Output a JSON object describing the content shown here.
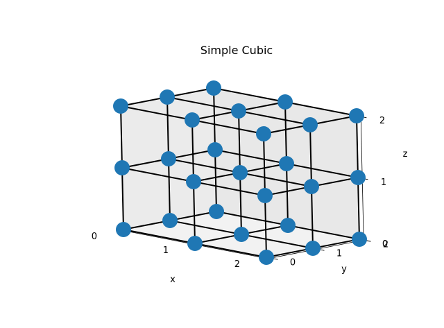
{
  "chart_data": {
    "type": "scatter3d",
    "title": "Simple Cubic",
    "xlabel": "x",
    "ylabel": "y",
    "zlabel": "z",
    "xlim": [
      0,
      2
    ],
    "ylim": [
      0,
      2
    ],
    "zlim": [
      0,
      2
    ],
    "xticks": [
      "0",
      "1",
      "2"
    ],
    "yticks": [
      "0",
      "1",
      "2"
    ],
    "zticks": [
      "0",
      "1",
      "2"
    ],
    "grid": true,
    "lattice_size": 3,
    "marker_color": "#1f77b4",
    "edge_color": "#000000",
    "points": [
      [
        0,
        0,
        0
      ],
      [
        0,
        0,
        1
      ],
      [
        0,
        0,
        2
      ],
      [
        0,
        1,
        0
      ],
      [
        0,
        1,
        1
      ],
      [
        0,
        1,
        2
      ],
      [
        0,
        2,
        0
      ],
      [
        0,
        2,
        1
      ],
      [
        0,
        2,
        2
      ],
      [
        1,
        0,
        0
      ],
      [
        1,
        0,
        1
      ],
      [
        1,
        0,
        2
      ],
      [
        1,
        1,
        0
      ],
      [
        1,
        1,
        1
      ],
      [
        1,
        1,
        2
      ],
      [
        1,
        2,
        0
      ],
      [
        1,
        2,
        1
      ],
      [
        1,
        2,
        2
      ],
      [
        2,
        0,
        0
      ],
      [
        2,
        0,
        1
      ],
      [
        2,
        0,
        2
      ],
      [
        2,
        1,
        0
      ],
      [
        2,
        1,
        1
      ],
      [
        2,
        1,
        2
      ],
      [
        2,
        2,
        0
      ],
      [
        2,
        2,
        1
      ],
      [
        2,
        2,
        2
      ]
    ],
    "edges": "all nearest-neighbour lattice lines along x, y and z"
  }
}
